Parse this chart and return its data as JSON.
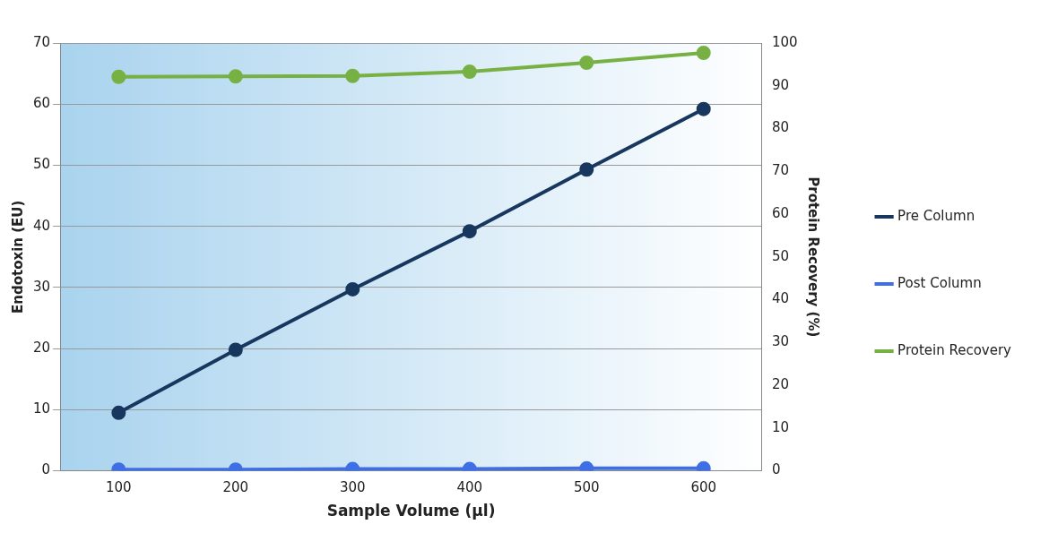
{
  "chart_data": {
    "type": "line",
    "xlabel": "Sample Volume (µl)",
    "ylabel": "Endotoxin (EU)",
    "y2label": "Protein Recovery (%)",
    "categories": [
      "100",
      "200",
      "300",
      "400",
      "500",
      "600"
    ],
    "series": [
      {
        "name": "Pre Column",
        "color": "#17375e",
        "values": [
          9.5,
          19.8,
          29.7,
          39.2,
          49.3,
          59.2
        ]
      },
      {
        "name": "Post Column",
        "color": "#3f6fe6",
        "values": [
          0.2,
          0.2,
          0.3,
          0.3,
          0.4,
          0.4
        ]
      },
      {
        "name": "Protein Recovery",
        "color": "#77b043",
        "axis": "y2",
        "values": [
          92.1,
          92.2,
          92.3,
          93.3,
          95.4,
          97.7
        ]
      }
    ],
    "ylim": [
      0,
      70
    ],
    "yticks": [
      0,
      10,
      20,
      30,
      40,
      50,
      60,
      70
    ],
    "y2lim": [
      0,
      100
    ],
    "y2ticks": [
      0,
      10,
      20,
      30,
      40,
      50,
      60,
      70,
      80,
      90,
      100
    ],
    "grid": "y",
    "legend": "right",
    "marker": "circle",
    "line_style": "solid"
  }
}
